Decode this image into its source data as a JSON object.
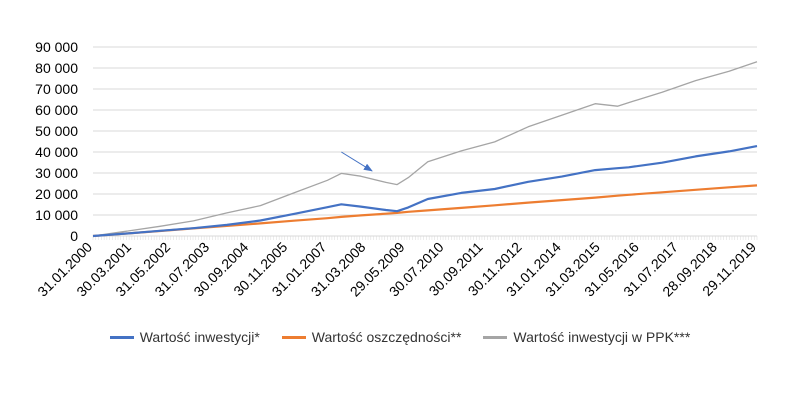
{
  "chart_data": {
    "type": "line",
    "title": "",
    "xlabel": "",
    "ylabel": "",
    "ylim": [
      0,
      90000
    ],
    "y_ticks": [
      0,
      10000,
      20000,
      30000,
      40000,
      50000,
      60000,
      70000,
      80000,
      90000
    ],
    "y_tick_labels": [
      "0",
      "10 000",
      "20 000",
      "30 000",
      "40 000",
      "50 000",
      "60 000",
      "70 000",
      "80 000",
      "90 000"
    ],
    "grid": true,
    "legend_position": "bottom",
    "x_tick_labels": [
      "31.01.2000",
      "30.03.2001",
      "31.05.2002",
      "31.07.2003",
      "30.09.2004",
      "30.11.2005",
      "31.01.2007",
      "31.03.2008",
      "29.05.2009",
      "30.07.2010",
      "30.09.2011",
      "30.11.2012",
      "31.01.2014",
      "31.03.2015",
      "31.05.2016",
      "31.07.2017",
      "28.09.2018",
      "29.11.2019"
    ],
    "x": [
      "2000-01",
      "2001-01",
      "2002-01",
      "2003-01",
      "2004-01",
      "2005-01",
      "2006-01",
      "2007-01",
      "2007-06",
      "2008-01",
      "2008-10",
      "2009-02",
      "2009-06",
      "2010-01",
      "2011-01",
      "2012-01",
      "2013-01",
      "2014-01",
      "2015-01",
      "2015-09",
      "2016-01",
      "2017-01",
      "2018-01",
      "2019-01",
      "2019-11"
    ],
    "series": [
      {
        "name": "Wartość inwestycji*",
        "color": "#4472c4",
        "values": [
          0,
          1200,
          2500,
          3700,
          5300,
          7400,
          10500,
          13700,
          15100,
          14000,
          12400,
          11800,
          13600,
          17600,
          20500,
          22400,
          25800,
          28300,
          31400,
          32300,
          32700,
          34900,
          37900,
          40300,
          42800
        ]
      },
      {
        "name": "Wartość oszczędności**",
        "color": "#ed7d31",
        "values": [
          0,
          1200,
          2400,
          3600,
          4800,
          6000,
          7300,
          8500,
          9100,
          9800,
          10600,
          11000,
          11500,
          12200,
          13400,
          14600,
          15900,
          17100,
          18300,
          19200,
          19600,
          20800,
          22000,
          23200,
          24100
        ]
      },
      {
        "name": "Wartość inwestycji w PPK***",
        "color": "#a5a5a5",
        "values": [
          0,
          2300,
          4600,
          7200,
          11000,
          14500,
          20500,
          26500,
          29800,
          28500,
          25500,
          24500,
          27800,
          35400,
          40500,
          44800,
          52000,
          57500,
          63000,
          61800,
          63500,
          68500,
          74000,
          78500,
          83000
        ]
      }
    ],
    "annotations": [
      {
        "type": "arrow",
        "color": "#4472c4",
        "from": [
          "2007-06",
          40000
        ],
        "to": [
          "2008-05",
          31000
        ]
      }
    ]
  }
}
